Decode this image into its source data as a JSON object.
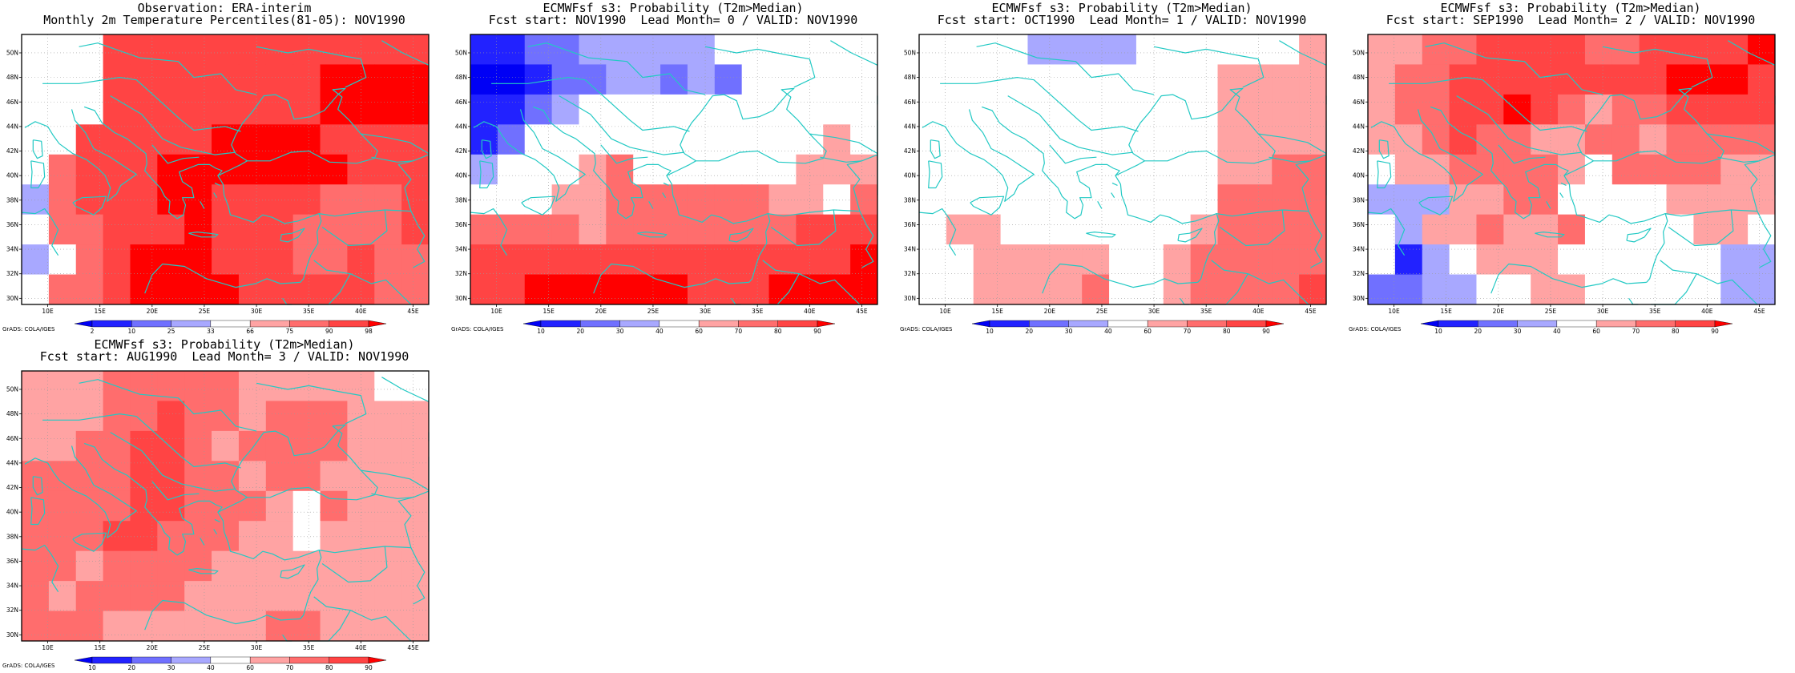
{
  "map_grid": {
    "lon_min": 7.5,
    "lon_max": 46.5,
    "lat_min": 29.5,
    "lat_max": 51.5,
    "cell_deg": 2.5,
    "cols": 15,
    "rows": 9,
    "lat_labels": [
      "30N",
      "32N",
      "34N",
      "36N",
      "38N",
      "40N",
      "42N",
      "44N",
      "46N",
      "48N",
      "50N"
    ],
    "lat_values": [
      30,
      32,
      34,
      36,
      38,
      40,
      42,
      44,
      46,
      48,
      50
    ],
    "lon_labels": [
      "10E",
      "15E",
      "20E",
      "25E",
      "30E",
      "35E",
      "40E",
      "45E"
    ],
    "lon_values": [
      10,
      15,
      20,
      25,
      30,
      35,
      40,
      45
    ]
  },
  "colors": {
    "coast": "#22c9c4",
    "palette": {
      "0": "#ffffff",
      "1": "#ffa3a3",
      "2": "#ff6d6d",
      "3": "#ff4444",
      "4": "#ff0000",
      "-1": "#a8a8ff",
      "-2": "#7070ff",
      "-3": "#2222ff",
      "-4": "#0000f5"
    }
  },
  "grads_label": "GrADS: COLA/IGES",
  "panels": [
    {
      "id": "obs",
      "title_line1": "Observation: ERA-interim",
      "title_line2": "Monthly 2m Temperature Percentiles(81-05): NOV1990",
      "colorbar_labels": [
        "2",
        "10",
        "25",
        "33",
        "66",
        "75",
        "90",
        "98"
      ],
      "grid": [
        [
          0,
          0,
          0,
          3,
          3,
          3,
          3,
          3,
          3,
          3,
          3,
          3,
          3,
          3,
          3
        ],
        [
          0,
          0,
          0,
          3,
          3,
          3,
          3,
          3,
          3,
          3,
          3,
          4,
          4,
          4,
          4
        ],
        [
          0,
          0,
          0,
          3,
          3,
          3,
          3,
          3,
          3,
          3,
          3,
          4,
          4,
          4,
          4
        ],
        [
          0,
          0,
          3,
          3,
          3,
          3,
          3,
          4,
          4,
          4,
          4,
          3,
          3,
          3,
          3
        ],
        [
          0,
          2,
          3,
          3,
          3,
          4,
          4,
          4,
          4,
          4,
          4,
          4,
          3,
          3,
          3
        ],
        [
          -1,
          2,
          3,
          3,
          3,
          4,
          4,
          3,
          3,
          3,
          3,
          2,
          2,
          2,
          3
        ],
        [
          0,
          2,
          2,
          3,
          3,
          3,
          4,
          3,
          3,
          3,
          2,
          2,
          2,
          2,
          3
        ],
        [
          -1,
          0,
          2,
          3,
          4,
          4,
          4,
          3,
          3,
          3,
          2,
          2,
          3,
          2,
          2
        ],
        [
          0,
          2,
          2,
          3,
          4,
          4,
          4,
          4,
          3,
          3,
          3,
          3,
          3,
          2,
          2
        ]
      ]
    },
    {
      "id": "lead0",
      "title_line1": "ECMWFsf s3: Probability (T2m>Median)",
      "title_line2": "Fcst start: NOV1990  Lead Month= 0 / VALID: NOV1990",
      "colorbar_labels": [
        "10",
        "20",
        "30",
        "40",
        "60",
        "70",
        "80",
        "90"
      ],
      "grid": [
        [
          -3,
          -3,
          -2,
          -2,
          -1,
          -1,
          -1,
          -1,
          -1,
          0,
          0,
          0,
          0,
          0,
          0
        ],
        [
          -4,
          -4,
          -3,
          -2,
          -2,
          -1,
          -1,
          -2,
          -1,
          -2,
          0,
          0,
          0,
          0,
          0
        ],
        [
          -3,
          -3,
          -2,
          -1,
          0,
          0,
          0,
          0,
          0,
          0,
          0,
          0,
          0,
          0,
          0
        ],
        [
          -3,
          -2,
          0,
          0,
          0,
          0,
          0,
          0,
          0,
          0,
          0,
          0,
          0,
          1,
          0
        ],
        [
          -1,
          0,
          0,
          0,
          1,
          2,
          0,
          0,
          0,
          0,
          0,
          0,
          1,
          1,
          1
        ],
        [
          0,
          0,
          0,
          1,
          1,
          2,
          2,
          2,
          2,
          2,
          2,
          1,
          1,
          0,
          2
        ],
        [
          2,
          2,
          2,
          2,
          1,
          2,
          2,
          2,
          2,
          2,
          2,
          2,
          3,
          3,
          3
        ],
        [
          3,
          3,
          3,
          3,
          3,
          3,
          3,
          3,
          3,
          3,
          3,
          3,
          3,
          3,
          4
        ],
        [
          3,
          3,
          4,
          4,
          4,
          4,
          4,
          4,
          3,
          3,
          3,
          4,
          4,
          4,
          4
        ]
      ]
    },
    {
      "id": "lead1",
      "title_line1": "ECMWFsf s3: Probability (T2m>Median)",
      "title_line2": "Fcst start: OCT1990  Lead Month= 1 / VALID: NOV1990",
      "colorbar_labels": [
        "10",
        "20",
        "30",
        "40",
        "60",
        "70",
        "80",
        "90"
      ],
      "grid": [
        [
          0,
          0,
          0,
          0,
          -1,
          -1,
          -1,
          -1,
          0,
          0,
          0,
          0,
          0,
          0,
          1
        ],
        [
          0,
          0,
          0,
          0,
          0,
          0,
          0,
          0,
          0,
          0,
          0,
          1,
          1,
          1,
          1
        ],
        [
          0,
          0,
          0,
          0,
          0,
          0,
          0,
          0,
          0,
          0,
          0,
          1,
          1,
          1,
          1
        ],
        [
          0,
          0,
          0,
          0,
          0,
          0,
          0,
          0,
          0,
          0,
          0,
          1,
          1,
          1,
          1
        ],
        [
          0,
          0,
          0,
          0,
          0,
          0,
          0,
          0,
          0,
          0,
          0,
          1,
          1,
          2,
          2
        ],
        [
          0,
          0,
          0,
          0,
          0,
          0,
          0,
          0,
          0,
          0,
          0,
          2,
          2,
          2,
          2
        ],
        [
          0,
          1,
          1,
          0,
          0,
          0,
          0,
          0,
          0,
          0,
          1,
          2,
          2,
          2,
          2
        ],
        [
          0,
          0,
          1,
          1,
          1,
          1,
          1,
          0,
          0,
          1,
          2,
          2,
          2,
          2,
          2
        ],
        [
          0,
          0,
          1,
          1,
          1,
          1,
          2,
          0,
          0,
          1,
          2,
          2,
          2,
          2,
          3
        ]
      ]
    },
    {
      "id": "lead2",
      "title_line1": "ECMWFsf s3: Probability (T2m>Median)",
      "title_line2": "Fcst start: SEP1990  Lead Month= 2 / VALID: NOV1990",
      "colorbar_labels": [
        "10",
        "20",
        "30",
        "40",
        "60",
        "70",
        "80",
        "90"
      ],
      "grid": [
        [
          1,
          1,
          2,
          2,
          3,
          3,
          3,
          3,
          2,
          2,
          3,
          3,
          3,
          3,
          4
        ],
        [
          1,
          2,
          2,
          3,
          3,
          3,
          3,
          3,
          3,
          3,
          3,
          4,
          4,
          4,
          3
        ],
        [
          1,
          2,
          2,
          3,
          3,
          4,
          3,
          2,
          1,
          2,
          2,
          3,
          3,
          3,
          3
        ],
        [
          1,
          1,
          2,
          3,
          2,
          2,
          1,
          1,
          2,
          2,
          1,
          2,
          2,
          2,
          2
        ],
        [
          0,
          1,
          1,
          2,
          2,
          2,
          2,
          1,
          0,
          2,
          2,
          2,
          2,
          1,
          1
        ],
        [
          -1,
          -1,
          -1,
          1,
          1,
          2,
          2,
          0,
          0,
          0,
          0,
          1,
          1,
          1,
          1
        ],
        [
          0,
          -1,
          1,
          1,
          2,
          1,
          1,
          2,
          0,
          0,
          0,
          0,
          1,
          1,
          0
        ],
        [
          0,
          -3,
          -1,
          0,
          1,
          1,
          1,
          0,
          0,
          0,
          0,
          0,
          0,
          -1,
          -1
        ],
        [
          -2,
          -2,
          -1,
          -1,
          0,
          0,
          1,
          1,
          0,
          0,
          0,
          0,
          0,
          -1,
          -1
        ]
      ]
    },
    {
      "id": "lead3",
      "title_line1": "ECMWFsf s3: Probability (T2m>Median)",
      "title_line2": "Fcst start: AUG1990  Lead Month= 3 / VALID: NOV1990",
      "colorbar_labels": [
        "10",
        "20",
        "30",
        "40",
        "60",
        "70",
        "80",
        "90"
      ],
      "grid": [
        [
          1,
          1,
          1,
          2,
          2,
          2,
          2,
          2,
          1,
          1,
          1,
          1,
          1,
          0,
          0
        ],
        [
          1,
          1,
          1,
          2,
          2,
          3,
          2,
          2,
          1,
          2,
          2,
          2,
          1,
          1,
          1
        ],
        [
          1,
          1,
          2,
          2,
          3,
          3,
          2,
          1,
          2,
          2,
          2,
          2,
          1,
          1,
          1
        ],
        [
          2,
          2,
          2,
          2,
          3,
          3,
          2,
          2,
          1,
          2,
          2,
          1,
          1,
          1,
          1
        ],
        [
          2,
          2,
          2,
          2,
          3,
          3,
          2,
          2,
          2,
          1,
          0,
          2,
          1,
          1,
          1
        ],
        [
          2,
          2,
          2,
          3,
          3,
          2,
          2,
          2,
          1,
          1,
          0,
          1,
          1,
          1,
          1
        ],
        [
          2,
          2,
          1,
          2,
          2,
          2,
          2,
          1,
          1,
          1,
          1,
          1,
          1,
          1,
          1
        ],
        [
          2,
          1,
          2,
          2,
          2,
          2,
          1,
          1,
          1,
          1,
          1,
          1,
          1,
          1,
          1
        ],
        [
          2,
          2,
          2,
          1,
          1,
          1,
          1,
          1,
          1,
          2,
          2,
          1,
          1,
          1,
          1
        ]
      ]
    }
  ]
}
